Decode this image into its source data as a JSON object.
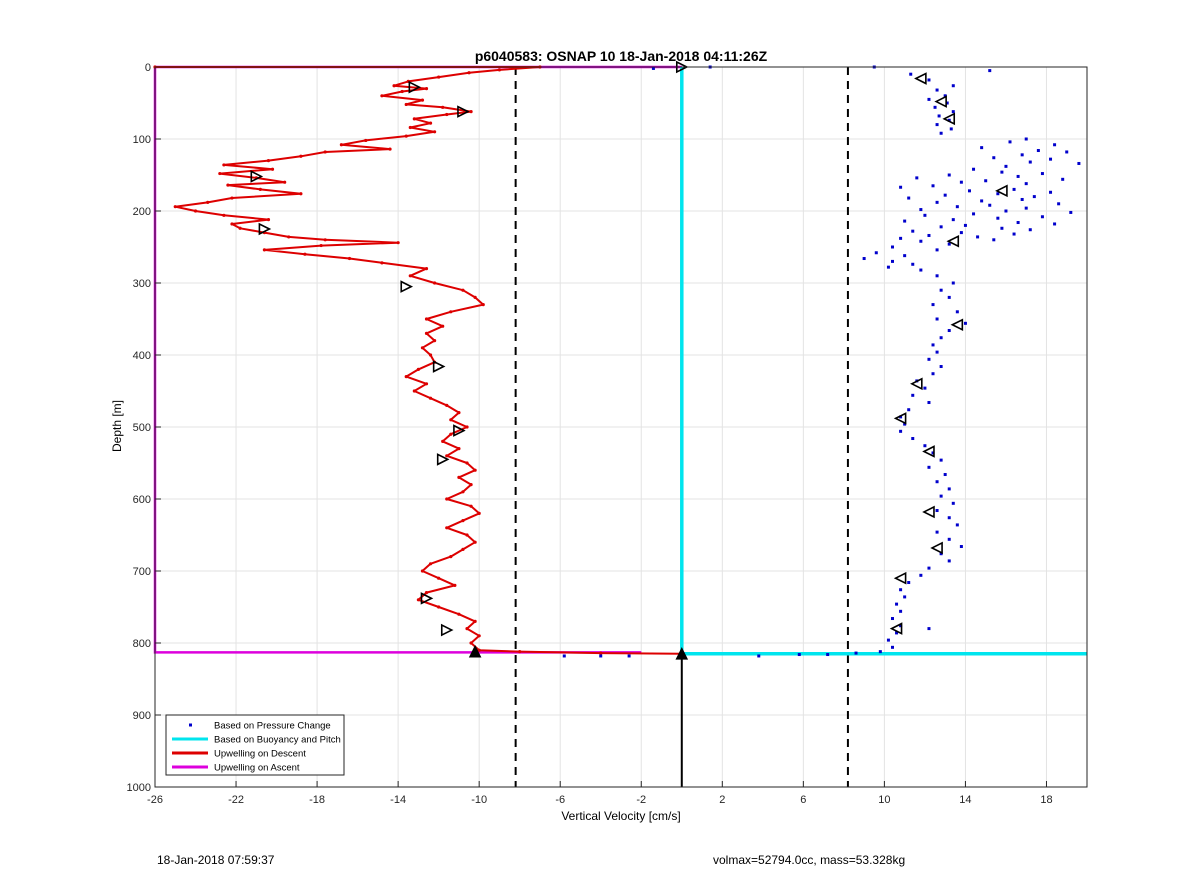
{
  "chart_data": {
    "type": "line",
    "title": "p6040583: OSNAP 10 18-Jan-2018 04:11:26Z",
    "xlabel": "Vertical Velocity [cm/s]",
    "ylabel": "Depth [m]",
    "xlim": [
      -26,
      20
    ],
    "ylim": [
      0,
      1000
    ],
    "y_reversed": true,
    "grid": true,
    "xticks": [
      -26,
      -22,
      -18,
      -14,
      -10,
      -6,
      -2,
      2,
      6,
      10,
      14,
      18
    ],
    "yticks": [
      0,
      100,
      200,
      300,
      400,
      500,
      600,
      700,
      800,
      900,
      1000
    ],
    "legend_position": "bottom-left",
    "colors": {
      "pressure": "#0000cc",
      "buoyancy": "#00e5ee",
      "descent": "#dd0000",
      "ascent": "#dd00dd",
      "markers": "#000000"
    },
    "series": [
      {
        "name": "Based on Pressure Change",
        "style": "dots",
        "points": [
          [
            9.5,
            0
          ],
          [
            11.3,
            10
          ],
          [
            12.2,
            18
          ],
          [
            13.4,
            26
          ],
          [
            12.6,
            32
          ],
          [
            13.0,
            40
          ],
          [
            12.2,
            45
          ],
          [
            13.1,
            50
          ],
          [
            12.5,
            56
          ],
          [
            13.4,
            62
          ],
          [
            12.7,
            68
          ],
          [
            13.2,
            74
          ],
          [
            12.6,
            80
          ],
          [
            13.3,
            86
          ],
          [
            12.8,
            92
          ],
          [
            15.2,
            5
          ],
          [
            17.0,
            100
          ],
          [
            16.2,
            104
          ],
          [
            18.4,
            108
          ],
          [
            14.8,
            112
          ],
          [
            17.6,
            116
          ],
          [
            19.0,
            118
          ],
          [
            16.8,
            122
          ],
          [
            15.4,
            126
          ],
          [
            18.2,
            128
          ],
          [
            17.2,
            132
          ],
          [
            19.6,
            134
          ],
          [
            16.0,
            138
          ],
          [
            14.4,
            142
          ],
          [
            15.8,
            146
          ],
          [
            17.8,
            148
          ],
          [
            13.2,
            150
          ],
          [
            16.6,
            152
          ],
          [
            11.6,
            154
          ],
          [
            18.8,
            156
          ],
          [
            15.0,
            158
          ],
          [
            13.8,
            160
          ],
          [
            17.0,
            162
          ],
          [
            12.4,
            165
          ],
          [
            10.8,
            167
          ],
          [
            16.4,
            170
          ],
          [
            14.2,
            172
          ],
          [
            18.2,
            174
          ],
          [
            15.6,
            176
          ],
          [
            13.0,
            178
          ],
          [
            17.4,
            180
          ],
          [
            11.2,
            182
          ],
          [
            16.8,
            184
          ],
          [
            14.8,
            186
          ],
          [
            12.6,
            188
          ],
          [
            18.6,
            190
          ],
          [
            15.2,
            192
          ],
          [
            13.6,
            194
          ],
          [
            17.0,
            196
          ],
          [
            11.8,
            198
          ],
          [
            16.0,
            200
          ],
          [
            19.2,
            202
          ],
          [
            14.4,
            204
          ],
          [
            12.0,
            206
          ],
          [
            17.8,
            208
          ],
          [
            15.6,
            210
          ],
          [
            13.4,
            212
          ],
          [
            11.0,
            214
          ],
          [
            16.6,
            216
          ],
          [
            18.4,
            218
          ],
          [
            14.0,
            220
          ],
          [
            12.8,
            222
          ],
          [
            15.8,
            224
          ],
          [
            17.2,
            226
          ],
          [
            11.4,
            228
          ],
          [
            13.8,
            230
          ],
          [
            16.4,
            232
          ],
          [
            12.2,
            234
          ],
          [
            14.6,
            236
          ],
          [
            10.8,
            238
          ],
          [
            15.4,
            240
          ],
          [
            11.8,
            242
          ],
          [
            13.2,
            246
          ],
          [
            10.4,
            250
          ],
          [
            12.6,
            254
          ],
          [
            9.6,
            258
          ],
          [
            11.0,
            262
          ],
          [
            9.0,
            266
          ],
          [
            10.4,
            270
          ],
          [
            11.4,
            274
          ],
          [
            10.2,
            278
          ],
          [
            11.8,
            282
          ],
          [
            12.6,
            290
          ],
          [
            13.4,
            300
          ],
          [
            12.8,
            310
          ],
          [
            13.2,
            320
          ],
          [
            12.4,
            330
          ],
          [
            13.6,
            340
          ],
          [
            12.6,
            350
          ],
          [
            14.0,
            356
          ],
          [
            13.2,
            366
          ],
          [
            12.8,
            376
          ],
          [
            12.4,
            386
          ],
          [
            12.6,
            396
          ],
          [
            12.2,
            406
          ],
          [
            12.8,
            416
          ],
          [
            12.4,
            426
          ],
          [
            11.6,
            436
          ],
          [
            12.0,
            446
          ],
          [
            11.4,
            456
          ],
          [
            12.2,
            466
          ],
          [
            11.2,
            476
          ],
          [
            10.8,
            486
          ],
          [
            11.0,
            496
          ],
          [
            10.8,
            506
          ],
          [
            11.4,
            516
          ],
          [
            12.0,
            526
          ],
          [
            12.4,
            536
          ],
          [
            12.8,
            546
          ],
          [
            12.2,
            556
          ],
          [
            13.0,
            566
          ],
          [
            12.6,
            576
          ],
          [
            13.2,
            586
          ],
          [
            12.8,
            596
          ],
          [
            13.4,
            606
          ],
          [
            12.6,
            616
          ],
          [
            13.2,
            626
          ],
          [
            13.6,
            636
          ],
          [
            12.6,
            646
          ],
          [
            13.2,
            656
          ],
          [
            13.8,
            666
          ],
          [
            12.8,
            676
          ],
          [
            13.2,
            686
          ],
          [
            12.2,
            696
          ],
          [
            11.8,
            706
          ],
          [
            11.2,
            716
          ],
          [
            10.8,
            726
          ],
          [
            11.0,
            736
          ],
          [
            10.6,
            746
          ],
          [
            10.8,
            756
          ],
          [
            10.4,
            766
          ],
          [
            10.8,
            776
          ],
          [
            12.2,
            780
          ],
          [
            10.6,
            786
          ],
          [
            10.2,
            796
          ],
          [
            10.4,
            806
          ],
          [
            9.8,
            812
          ],
          [
            -5.8,
            818
          ],
          [
            -4.0,
            818
          ],
          [
            -2.6,
            818
          ],
          [
            3.8,
            818
          ],
          [
            5.8,
            816
          ],
          [
            7.2,
            816
          ],
          [
            8.6,
            814
          ],
          [
            -1.4,
            2
          ],
          [
            1.4,
            0
          ]
        ]
      },
      {
        "name": "Based on Buoyancy and Pitch",
        "style": "line",
        "points": [
          [
            0,
            0
          ],
          [
            0,
            815
          ],
          [
            20,
            815
          ]
        ]
      },
      {
        "name": "Upwelling on Descent",
        "style": "line",
        "points": [
          [
            -26,
            0
          ],
          [
            -7,
            0
          ],
          [
            -9,
            4
          ],
          [
            -10.5,
            8
          ],
          [
            -12,
            14
          ],
          [
            -13.5,
            20
          ],
          [
            -14.2,
            26
          ],
          [
            -12.6,
            30
          ],
          [
            -13.8,
            34
          ],
          [
            -14.8,
            40
          ],
          [
            -12.8,
            46
          ],
          [
            -13.6,
            52
          ],
          [
            -11.8,
            56
          ],
          [
            -10.4,
            62
          ],
          [
            -11.6,
            66
          ],
          [
            -13.2,
            72
          ],
          [
            -12.4,
            78
          ],
          [
            -13.4,
            84
          ],
          [
            -12.2,
            90
          ],
          [
            -13.6,
            96
          ],
          [
            -15.6,
            102
          ],
          [
            -16.8,
            108
          ],
          [
            -14.4,
            114
          ],
          [
            -17.6,
            118
          ],
          [
            -18.8,
            124
          ],
          [
            -20.4,
            130
          ],
          [
            -22.6,
            136
          ],
          [
            -20.2,
            142
          ],
          [
            -22.8,
            148
          ],
          [
            -21.0,
            154
          ],
          [
            -19.6,
            160
          ],
          [
            -22.4,
            164
          ],
          [
            -20.8,
            170
          ],
          [
            -18.8,
            176
          ],
          [
            -22.2,
            182
          ],
          [
            -23.4,
            188
          ],
          [
            -25.0,
            194
          ],
          [
            -24.0,
            200
          ],
          [
            -22.6,
            206
          ],
          [
            -20.4,
            212
          ],
          [
            -22.2,
            218
          ],
          [
            -21.8,
            224
          ],
          [
            -20.6,
            230
          ],
          [
            -19.4,
            236
          ],
          [
            -17.6,
            240
          ],
          [
            -14.0,
            244
          ],
          [
            -17.8,
            248
          ],
          [
            -20.6,
            254
          ],
          [
            -18.6,
            260
          ],
          [
            -16.4,
            266
          ],
          [
            -14.8,
            272
          ],
          [
            -12.6,
            280
          ],
          [
            -13.4,
            290
          ],
          [
            -12.2,
            300
          ],
          [
            -10.8,
            310
          ],
          [
            -10.2,
            320
          ],
          [
            -9.8,
            330
          ],
          [
            -11.4,
            340
          ],
          [
            -12.6,
            350
          ],
          [
            -11.8,
            360
          ],
          [
            -12.6,
            370
          ],
          [
            -12.2,
            380
          ],
          [
            -12.8,
            390
          ],
          [
            -12.4,
            400
          ],
          [
            -12.2,
            410
          ],
          [
            -13.0,
            420
          ],
          [
            -13.6,
            430
          ],
          [
            -12.6,
            440
          ],
          [
            -13.2,
            450
          ],
          [
            -12.4,
            460
          ],
          [
            -11.6,
            470
          ],
          [
            -11.0,
            480
          ],
          [
            -11.4,
            490
          ],
          [
            -10.6,
            500
          ],
          [
            -11.4,
            510
          ],
          [
            -11.8,
            520
          ],
          [
            -11.0,
            530
          ],
          [
            -11.6,
            540
          ],
          [
            -10.6,
            550
          ],
          [
            -10.2,
            560
          ],
          [
            -11.0,
            570
          ],
          [
            -10.4,
            580
          ],
          [
            -10.8,
            590
          ],
          [
            -11.6,
            600
          ],
          [
            -10.4,
            610
          ],
          [
            -10.0,
            620
          ],
          [
            -10.8,
            630
          ],
          [
            -11.6,
            640
          ],
          [
            -10.6,
            650
          ],
          [
            -10.2,
            660
          ],
          [
            -10.8,
            670
          ],
          [
            -11.4,
            680
          ],
          [
            -12.4,
            690
          ],
          [
            -12.8,
            700
          ],
          [
            -12.0,
            710
          ],
          [
            -11.2,
            720
          ],
          [
            -12.6,
            730
          ],
          [
            -13.0,
            740
          ],
          [
            -12.0,
            750
          ],
          [
            -11.0,
            760
          ],
          [
            -10.2,
            770
          ],
          [
            -10.6,
            780
          ],
          [
            -10.0,
            790
          ],
          [
            -10.4,
            800
          ],
          [
            -10.0,
            810
          ],
          [
            -8,
            812
          ],
          [
            -4,
            814
          ],
          [
            0,
            815
          ]
        ]
      },
      {
        "name": "Upwelling on Ascent",
        "style": "line",
        "points": [
          [
            -26,
            0
          ],
          [
            0,
            0
          ],
          [
            -26,
            0
          ],
          [
            -26,
            813
          ],
          [
            -2,
            813
          ]
        ]
      }
    ],
    "threshold_lines": [
      -8.2,
      8.2
    ],
    "vertical_black_line": {
      "x": 0,
      "from": 815,
      "to": 1000
    },
    "markers_left": [
      [
        -13.2,
        28
      ],
      [
        -10.8,
        62
      ],
      [
        -21.0,
        152
      ],
      [
        -20.6,
        225
      ],
      [
        -13.6,
        305
      ],
      [
        -12.0,
        416
      ],
      [
        -11.0,
        505
      ],
      [
        -11.8,
        545
      ],
      [
        -12.6,
        738
      ],
      [
        -11.6,
        782
      ]
    ],
    "markers_right": [
      [
        11.8,
        16
      ],
      [
        12.8,
        48
      ],
      [
        13.2,
        72
      ],
      [
        15.8,
        172
      ],
      [
        13.4,
        242
      ],
      [
        13.6,
        358
      ],
      [
        11.6,
        440
      ],
      [
        10.8,
        488
      ],
      [
        12.2,
        534
      ],
      [
        12.2,
        618
      ],
      [
        12.6,
        668
      ],
      [
        10.8,
        710
      ],
      [
        10.6,
        780
      ]
    ],
    "markers_up": [
      [
        -10.2,
        812
      ],
      [
        0,
        815
      ]
    ],
    "marker_top": [
      0,
      0
    ]
  },
  "footer": {
    "left": "18-Jan-2018 07:59:37",
    "right": "volmax=52794.0cc, mass=53.328kg"
  }
}
